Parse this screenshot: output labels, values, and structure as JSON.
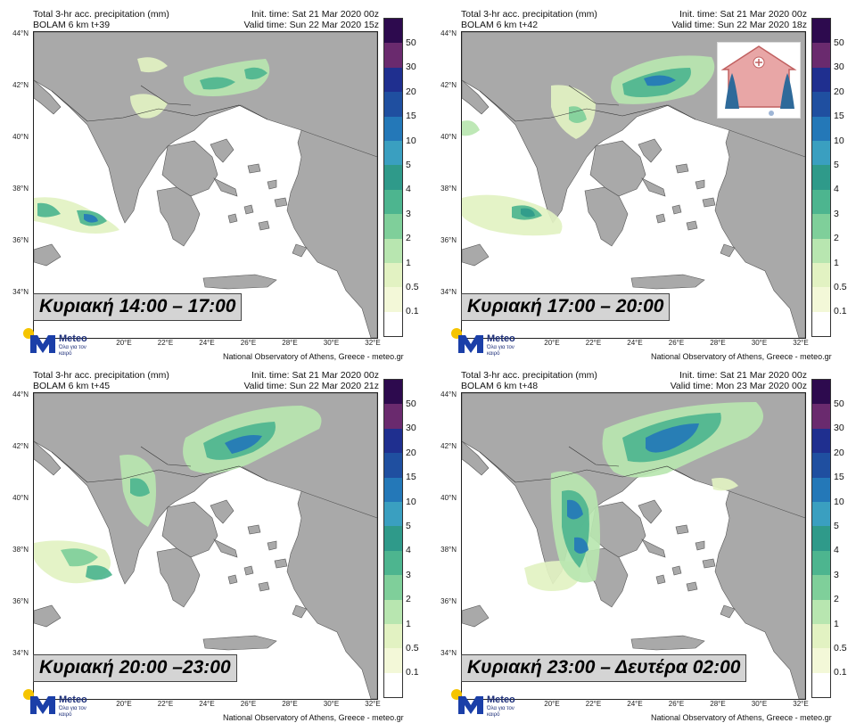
{
  "panels": [
    {
      "title": "Total 3-hr acc. precipitation (mm)",
      "model": "BOLAM 6 km t+39",
      "init": "Init. time: Sat 21 Mar 2020 00z",
      "valid": "Valid time: Sun 22 Mar 2020 15z",
      "caption": "Κυριακή 14:00 – 17:00"
    },
    {
      "title": "Total 3-hr acc. precipitation (mm)",
      "model": "BOLAM 6 km t+42",
      "init": "Init. time: Sat 21 Mar 2020 00z",
      "valid": "Valid time: Sun 22 Mar 2020 18z",
      "caption": "Κυριακή 17:00 – 20:00"
    },
    {
      "title": "Total 3-hr acc. precipitation (mm)",
      "model": "BOLAM 6 km t+45",
      "init": "Init. time: Sat 21 Mar 2020 00z",
      "valid": "Valid time: Sun 22 Mar 2020 21z",
      "caption": "Κυριακή 20:00 –23:00"
    },
    {
      "title": "Total 3-hr acc. precipitation (mm)",
      "model": "BOLAM 6 km t+48",
      "init": "Init. time: Sat 21 Mar 2020 00z",
      "valid": "Valid time: Mon 23 Mar 2020 00z",
      "caption": "Κυριακή 23:00 – Δευτέρα 02:00"
    }
  ],
  "lat_labels": [
    "44°N",
    "42°N",
    "40°N",
    "38°N",
    "36°N",
    "34°N"
  ],
  "lon_labels": [
    "20°E",
    "22°E",
    "24°E",
    "26°E",
    "28°E",
    "30°E",
    "32°E"
  ],
  "colorbar_labels": [
    "50",
    "30",
    "20",
    "15",
    "10",
    "5",
    "4",
    "3",
    "2",
    "1",
    "0.5",
    "0.1"
  ],
  "colorbar_colors": [
    "#2d0a4e",
    "#6a2a6e",
    "#1f2f8f",
    "#1f4fa0",
    "#2478b8",
    "#3a9fc0",
    "#2f9a8a",
    "#4db58f",
    "#7fcf9a",
    "#b8e6b0",
    "#e2f2c2",
    "#f3f8d8",
    "#ffffff"
  ],
  "logo": {
    "brand": "Meteo",
    "tagline": "Όλα για τον καιρό"
  },
  "credit": "National Observatory of Athens, Greece - meteo.gr"
}
